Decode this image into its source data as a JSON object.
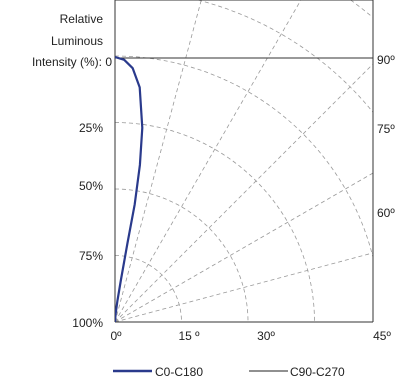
{
  "chart_data": {
    "type": "polar",
    "ylabel": [
      "Relative",
      "Luminous",
      "Intensity (%): 0"
    ],
    "radial_ticks": [
      "25%",
      "50%",
      "75%",
      "100%"
    ],
    "angle_ticks_bottom": [
      "0º",
      "15 º",
      "30º",
      "45º"
    ],
    "angle_ticks_right": [
      "60º",
      "75º",
      "90º"
    ],
    "grid_angle_step_deg": 15,
    "grid_radius_step_pct": 25,
    "series": [
      {
        "name": "C0-C180",
        "color": "#2a3a8c",
        "points": [
          [
            0,
            100
          ],
          [
            2,
            99
          ],
          [
            4,
            96
          ],
          [
            6,
            89
          ],
          [
            8,
            74
          ],
          [
            9,
            60
          ],
          [
            9.5,
            45
          ],
          [
            9,
            30
          ],
          [
            8,
            16
          ],
          [
            6.5,
            8
          ],
          [
            4,
            3
          ],
          [
            0,
            0
          ]
        ]
      },
      {
        "name": "C90-C270",
        "color": "#222222",
        "points": []
      }
    ],
    "legend": {
      "position": "bottom"
    }
  }
}
